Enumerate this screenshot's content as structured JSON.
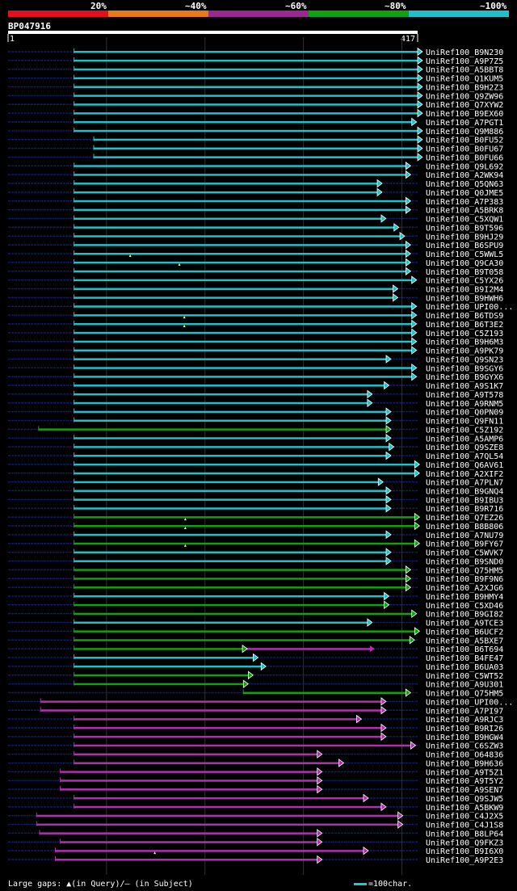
{
  "legend": {
    "labels": [
      "20%",
      "~40%",
      "~60%",
      "~80%",
      "~100%"
    ],
    "colors": [
      "#e01020",
      "#e87818",
      "#9a2890",
      "#10a010",
      "#20c0c8"
    ]
  },
  "query": {
    "id": "BP047916",
    "start": "1",
    "end": "417"
  },
  "footer": {
    "gaps_text": "Large gaps: ▲(in Query)/– (in Subject)",
    "scale_text": "=100char."
  },
  "colors": {
    "cyan": "#20c0c8",
    "green": "#10a010",
    "purple": "#b030b0",
    "dashed": "#101e5a"
  },
  "chart_data": {
    "type": "alignment",
    "query_length": 417,
    "hits": [
      {
        "name": "UniRef100_B9N230",
        "color": "cyan",
        "start": 68,
        "end": 417,
        "tri": 1
      },
      {
        "name": "UniRef100_A9P7Z5",
        "color": "cyan",
        "start": 68,
        "end": 417,
        "tri": 1
      },
      {
        "name": "UniRef100_A5BBT8",
        "color": "cyan",
        "start": 68,
        "end": 417,
        "tri": 1
      },
      {
        "name": "UniRef100_Q1KUM5",
        "color": "cyan",
        "start": 68,
        "end": 417,
        "tri": 1
      },
      {
        "name": "UniRef100_B9H2Z3",
        "color": "cyan",
        "start": 68,
        "end": 417,
        "tri": 1
      },
      {
        "name": "UniRef100_Q9ZW96",
        "color": "cyan",
        "start": 68,
        "end": 417,
        "tri": 1
      },
      {
        "name": "UniRef100_Q7XYW2",
        "color": "cyan",
        "start": 68,
        "end": 417,
        "tri": 1
      },
      {
        "name": "UniRef100_B9EX60",
        "color": "cyan",
        "start": 68,
        "end": 417,
        "tri": 1
      },
      {
        "name": "UniRef100_A7PGT1",
        "color": "cyan",
        "start": 68,
        "end": 411,
        "tri": 1
      },
      {
        "name": "UniRef100_Q9M886",
        "color": "cyan",
        "start": 68,
        "end": 417,
        "tri": 1
      },
      {
        "name": "UniRef100_B0FU52",
        "color": "cyan",
        "start": 88,
        "end": 417,
        "tri": 1
      },
      {
        "name": "UniRef100_B0FU67",
        "color": "cyan",
        "start": 88,
        "end": 417,
        "tri": 1
      },
      {
        "name": "UniRef100_B0FU66",
        "color": "cyan",
        "start": 88,
        "end": 417,
        "tri": 1
      },
      {
        "name": "UniRef100_Q9L692",
        "color": "cyan",
        "start": 68,
        "end": 405,
        "tri": 1
      },
      {
        "name": "UniRef100_A2WK94",
        "color": "cyan",
        "start": 68,
        "end": 405,
        "tri": 1
      },
      {
        "name": "UniRef100_Q5QN63",
        "color": "cyan",
        "start": 68,
        "end": 376,
        "tri": 1
      },
      {
        "name": "UniRef100_Q0JME5",
        "color": "cyan",
        "start": 68,
        "end": 376,
        "tri": 1
      },
      {
        "name": "UniRef100_A7P383",
        "color": "cyan",
        "start": 68,
        "end": 405,
        "tri": 1
      },
      {
        "name": "UniRef100_A5BRK8",
        "color": "cyan",
        "start": 68,
        "end": 405,
        "tri": 1
      },
      {
        "name": "UniRef100_C5XQW1",
        "color": "cyan",
        "start": 68,
        "end": 380,
        "tri": 1
      },
      {
        "name": "UniRef100_B9T596",
        "color": "cyan",
        "start": 68,
        "end": 393,
        "tri": 1
      },
      {
        "name": "UniRef100_B9HJ29",
        "color": "cyan",
        "start": 68,
        "end": 399,
        "tri": 1
      },
      {
        "name": "UniRef100_B6SPU9",
        "color": "cyan",
        "start": 68,
        "end": 405,
        "tri": 1
      },
      {
        "name": "UniRef100_C5WWL5",
        "color": "cyan",
        "start": 68,
        "end": 405,
        "tri": 1,
        "qgap": 125
      },
      {
        "name": "UniRef100_Q9CA30",
        "color": "cyan",
        "start": 68,
        "end": 405,
        "tri": 1,
        "qgap": 175
      },
      {
        "name": "UniRef100_B9T058",
        "color": "cyan",
        "start": 68,
        "end": 405,
        "tri": 1
      },
      {
        "name": "UniRef100_C5YX26",
        "color": "cyan",
        "start": 68,
        "end": 411,
        "tri": 1
      },
      {
        "name": "UniRef100_B9I2M4",
        "color": "cyan",
        "start": 68,
        "end": 392,
        "tri": 1
      },
      {
        "name": "UniRef100_B9HWH6",
        "color": "cyan",
        "start": 68,
        "end": 392,
        "tri": 1
      },
      {
        "name": "UniRef100_UPI00...",
        "color": "cyan",
        "start": 68,
        "end": 411,
        "tri": 1
      },
      {
        "name": "UniRef100_B6TDS9",
        "color": "cyan",
        "start": 68,
        "end": 411,
        "tri": 1,
        "qgap": 180
      },
      {
        "name": "UniRef100_B6T3E2",
        "color": "cyan",
        "start": 68,
        "end": 411,
        "tri": 1,
        "qgap": 180
      },
      {
        "name": "UniRef100_C5Z193",
        "color": "cyan",
        "start": 68,
        "end": 411,
        "tri": 1
      },
      {
        "name": "UniRef100_B9H6M3",
        "color": "cyan",
        "start": 68,
        "end": 411,
        "tri": 1
      },
      {
        "name": "UniRef100_A9PK79",
        "color": "cyan",
        "start": 68,
        "end": 411,
        "tri": 1
      },
      {
        "name": "UniRef100_Q9SN23",
        "color": "cyan",
        "start": 68,
        "end": 385,
        "tri": 1
      },
      {
        "name": "UniRef100_B9SGY6",
        "color": "cyan",
        "start": 68,
        "end": 411,
        "tri": 1
      },
      {
        "name": "UniRef100_B9GYX6",
        "color": "cyan",
        "start": 68,
        "end": 411,
        "tri": 1
      },
      {
        "name": "UniRef100_A9S1K7",
        "color": "cyan",
        "start": 68,
        "end": 383,
        "tri": 1
      },
      {
        "name": "UniRef100_A9T578",
        "color": "cyan",
        "start": 68,
        "end": 366,
        "tri": 1
      },
      {
        "name": "UniRef100_A9RNM5",
        "color": "cyan",
        "start": 68,
        "end": 366,
        "tri": 1
      },
      {
        "name": "UniRef100_Q0PN09",
        "color": "cyan",
        "start": 68,
        "end": 385,
        "tri": 1
      },
      {
        "name": "UniRef100_Q9FN11",
        "color": "cyan",
        "start": 68,
        "end": 385,
        "tri": 1
      },
      {
        "name": "UniRef100_C5Z192",
        "color": "green",
        "start": 32,
        "end": 385,
        "tri": 1
      },
      {
        "name": "UniRef100_A5AMP6",
        "color": "cyan",
        "start": 68,
        "end": 385,
        "tri": 1
      },
      {
        "name": "UniRef100_Q9SZE8",
        "color": "cyan",
        "start": 68,
        "end": 388,
        "tri": 1
      },
      {
        "name": "UniRef100_A7QL54",
        "color": "cyan",
        "start": 68,
        "end": 385,
        "tri": 1
      },
      {
        "name": "UniRef100_Q6AV61",
        "color": "cyan",
        "start": 68,
        "end": 414,
        "tri": 1
      },
      {
        "name": "UniRef100_A2XIF2",
        "color": "cyan",
        "start": 68,
        "end": 414,
        "tri": 1
      },
      {
        "name": "UniRef100_A7PLN7",
        "color": "cyan",
        "start": 68,
        "end": 377,
        "tri": 1
      },
      {
        "name": "UniRef100_B9GNQ4",
        "color": "cyan",
        "start": 68,
        "end": 385,
        "tri": 1
      },
      {
        "name": "UniRef100_B9IBU3",
        "color": "cyan",
        "start": 68,
        "end": 385,
        "tri": 1
      },
      {
        "name": "UniRef100_B9R716",
        "color": "cyan",
        "start": 68,
        "end": 385,
        "tri": 1
      },
      {
        "name": "UniRef100_Q7EZ26",
        "color": "green",
        "start": 68,
        "end": 414,
        "tri": 1,
        "qgap": 181
      },
      {
        "name": "UniRef100_B8B806",
        "color": "green",
        "start": 68,
        "end": 414,
        "tri": 1,
        "qgap": 181
      },
      {
        "name": "UniRef100_A7NU79",
        "color": "cyan",
        "start": 68,
        "end": 385,
        "tri": 1
      },
      {
        "name": "UniRef100_B9FY67",
        "color": "green",
        "start": 68,
        "end": 414,
        "tri": 1,
        "qgap": 181
      },
      {
        "name": "UniRef100_C5WVK7",
        "color": "cyan",
        "start": 68,
        "end": 385,
        "tri": 1
      },
      {
        "name": "UniRef100_B9SND0",
        "color": "cyan",
        "start": 68,
        "end": 385,
        "tri": 1
      },
      {
        "name": "UniRef100_Q75HM5",
        "color": "green",
        "start": 68,
        "end": 405,
        "tri": 1
      },
      {
        "name": "UniRef100_B9F9N6",
        "color": "green",
        "start": 68,
        "end": 405,
        "tri": 1
      },
      {
        "name": "UniRef100_A2XJG6",
        "color": "green",
        "start": 68,
        "end": 405,
        "tri": 1
      },
      {
        "name": "UniRef100_B9HMY4",
        "color": "cyan",
        "start": 68,
        "end": 383,
        "tri": 1
      },
      {
        "name": "UniRef100_C5XD46",
        "color": "green",
        "start": 68,
        "end": 383,
        "tri": 1
      },
      {
        "name": "UniRef100_B9GI82",
        "color": "green",
        "start": 68,
        "end": 411,
        "tri": 1
      },
      {
        "name": "UniRef100_A9TCE3",
        "color": "cyan",
        "start": 68,
        "end": 366,
        "tri": 1
      },
      {
        "name": "UniRef100_B6UCF2",
        "color": "green",
        "start": 68,
        "end": 414,
        "tri": 1
      },
      {
        "name": "UniRef100_A5BXE7",
        "color": "green",
        "start": 68,
        "end": 409,
        "tri": 1
      },
      {
        "name": "UniRef100_B6T694",
        "color": "green",
        "start": 68,
        "end": 239,
        "tri": 1,
        "extra": {
          "start": 239,
          "end": 371,
          "color": "purple"
        }
      },
      {
        "name": "UniRef100_B4FE47",
        "color": "cyan",
        "start": 68,
        "end": 250,
        "tri": 1
      },
      {
        "name": "UniRef100_B6UA03",
        "color": "cyan",
        "start": 68,
        "end": 258,
        "tri": 1
      },
      {
        "name": "UniRef100_C5WT52",
        "color": "green",
        "start": 68,
        "end": 245,
        "tri": 1
      },
      {
        "name": "UniRef100_A9U301",
        "color": "green",
        "start": 68,
        "end": 240,
        "tri": 1
      },
      {
        "name": "UniRef100_Q75HM5",
        "color": "green",
        "start": 240,
        "end": 405,
        "tri": 1
      },
      {
        "name": "UniRef100_UPI00...",
        "color": "purple",
        "start": 34,
        "end": 380,
        "tri": 1
      },
      {
        "name": "UniRef100_A7PI97",
        "color": "purple",
        "start": 34,
        "end": 380,
        "tri": 1
      },
      {
        "name": "UniRef100_A9RJC3",
        "color": "purple",
        "start": 68,
        "end": 355,
        "tri": 1
      },
      {
        "name": "UniRef100_B9RI26",
        "color": "purple",
        "start": 68,
        "end": 380,
        "tri": 1
      },
      {
        "name": "UniRef100_B9HGW4",
        "color": "purple",
        "start": 68,
        "end": 380,
        "tri": 1
      },
      {
        "name": "UniRef100_C6SZW3",
        "color": "purple",
        "start": 68,
        "end": 410,
        "tri": 1
      },
      {
        "name": "UniRef100_O64836",
        "color": "purple",
        "start": 68,
        "end": 315,
        "tri": 1
      },
      {
        "name": "UniRef100_B9H636",
        "color": "purple",
        "start": 68,
        "end": 337,
        "tri": 1
      },
      {
        "name": "UniRef100_A9T5Z1",
        "color": "purple",
        "start": 54,
        "end": 315,
        "tri": 1
      },
      {
        "name": "UniRef100_A9T5Y2",
        "color": "purple",
        "start": 54,
        "end": 315,
        "tri": 1
      },
      {
        "name": "UniRef100_A9SEN7",
        "color": "purple",
        "start": 54,
        "end": 315,
        "tri": 1
      },
      {
        "name": "UniRef100_Q9SJW5",
        "color": "purple",
        "start": 68,
        "end": 362,
        "tri": 1
      },
      {
        "name": "UniRef100_A5BKW9",
        "color": "purple",
        "start": 68,
        "end": 380,
        "tri": 1
      },
      {
        "name": "UniRef100_C4J2X5",
        "color": "purple",
        "start": 30,
        "end": 397,
        "tri": 1
      },
      {
        "name": "UniRef100_C4J1S8",
        "color": "purple",
        "start": 30,
        "end": 397,
        "tri": 1
      },
      {
        "name": "UniRef100_B8LP64",
        "color": "purple",
        "start": 33,
        "end": 315,
        "tri": 1
      },
      {
        "name": "UniRef100_Q9FKZ3",
        "color": "purple",
        "start": 54,
        "end": 315,
        "tri": 1
      },
      {
        "name": "UniRef100_B9I6X0",
        "color": "purple",
        "start": 49,
        "end": 362,
        "tri": 1,
        "qgap": 150
      },
      {
        "name": "UniRef100_A9P2E3",
        "color": "purple",
        "start": 49,
        "end": 315,
        "tri": 1
      }
    ]
  }
}
